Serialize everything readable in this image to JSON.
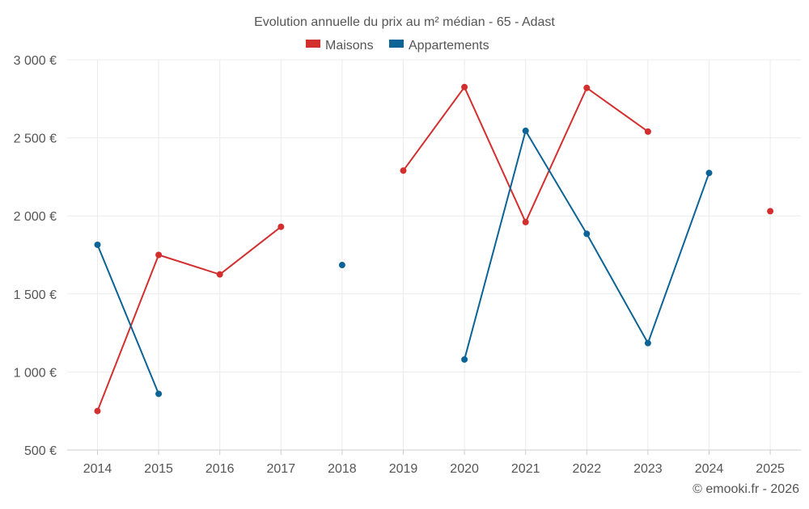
{
  "chart_data": {
    "type": "line",
    "title": "Evolution annuelle du prix au m² médian - 65 - Adast",
    "categories": [
      "2014",
      "2015",
      "2016",
      "2017",
      "2018",
      "2019",
      "2020",
      "2021",
      "2022",
      "2023",
      "2024",
      "2025"
    ],
    "series": [
      {
        "name": "Maisons",
        "color": "#d32f2f",
        "values": [
          750,
          1750,
          1625,
          1930,
          null,
          2290,
          2825,
          1960,
          2820,
          2540,
          null,
          2030
        ]
      },
      {
        "name": "Appartements",
        "color": "#0b6396",
        "values": [
          1815,
          860,
          null,
          null,
          1685,
          null,
          1080,
          2545,
          1885,
          1185,
          2275,
          null
        ]
      }
    ],
    "y_ticks": [
      {
        "value": 500,
        "label": "500 €"
      },
      {
        "value": 1000,
        "label": "1 000 €"
      },
      {
        "value": 1500,
        "label": "1 500 €"
      },
      {
        "value": 2000,
        "label": "2 000 €"
      },
      {
        "value": 2500,
        "label": "2 500 €"
      },
      {
        "value": 3000,
        "label": "3 000 €"
      }
    ],
    "ylim": [
      500,
      3000
    ],
    "xlabel": "",
    "ylabel": "",
    "grid": true,
    "legend_position": "top"
  },
  "footer": {
    "credit": "© emooki.fr - 2026"
  },
  "colors": {
    "grid": "#ebebeb",
    "axis": "#cccccc",
    "text": "#555555"
  }
}
